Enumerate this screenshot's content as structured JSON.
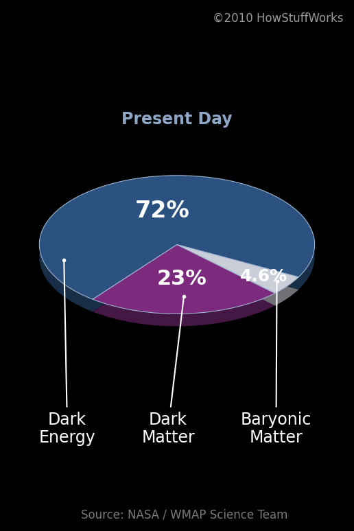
{
  "chart_data": {
    "type": "pie",
    "title": "Present Day",
    "categories": [
      "Dark Energy",
      "Dark Matter",
      "Baryonic Matter"
    ],
    "values": [
      72,
      23,
      4.6
    ],
    "value_labels": [
      "72%",
      "23%",
      "4.6%"
    ],
    "colors": [
      "#2b5180",
      "#7b2a7e",
      "#c9ced8"
    ],
    "data_labels": true,
    "annotations": [
      "©2010 HowStuffWorks",
      "Source: NASA / WMAP Science Team"
    ]
  }
}
